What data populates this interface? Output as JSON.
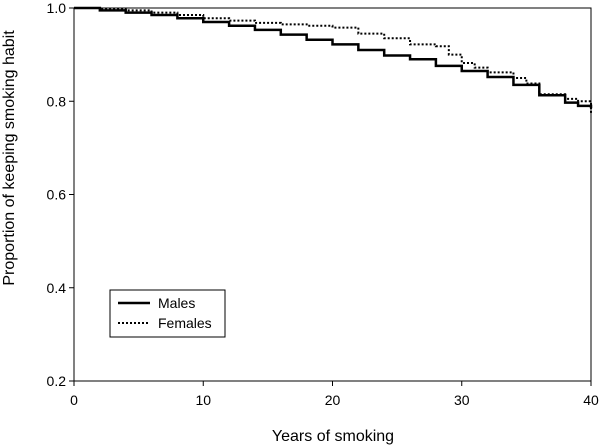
{
  "chart_data": {
    "type": "line",
    "title": "",
    "xlabel": "Years of smoking",
    "ylabel": "Proportion of keeping smoking habit",
    "xlim": [
      0,
      40
    ],
    "ylim": [
      0.2,
      1.0
    ],
    "xticks": [
      0,
      10,
      20,
      30,
      40
    ],
    "yticks": [
      0.2,
      0.4,
      0.6,
      0.8,
      1.0
    ],
    "x_tick_labels": [
      "0",
      "10",
      "20",
      "30",
      "40"
    ],
    "y_tick_labels": [
      "0.2",
      "0.4",
      "0.6",
      "0.8",
      "1.0"
    ],
    "grid": false,
    "legend_position": "lower-left",
    "series": [
      {
        "name": "Males",
        "style": "solid",
        "color": "#000000",
        "x": [
          0,
          2,
          4,
          6,
          8,
          10,
          12,
          14,
          16,
          18,
          20,
          22,
          24,
          26,
          28,
          30,
          32,
          34,
          36,
          38,
          39,
          40
        ],
        "y": [
          1.0,
          0.995,
          0.99,
          0.985,
          0.978,
          0.97,
          0.962,
          0.953,
          0.943,
          0.932,
          0.922,
          0.91,
          0.898,
          0.89,
          0.876,
          0.865,
          0.852,
          0.835,
          0.813,
          0.797,
          0.79,
          0.785
        ]
      },
      {
        "name": "Females",
        "style": "dotted",
        "color": "#000000",
        "x": [
          0,
          2,
          4,
          6,
          8,
          10,
          12,
          14,
          16,
          18,
          20,
          22,
          24,
          26,
          28,
          29,
          30,
          31,
          32,
          34,
          35,
          36,
          38,
          39,
          40
        ],
        "y": [
          1.0,
          0.998,
          0.995,
          0.99,
          0.985,
          0.978,
          0.973,
          0.968,
          0.965,
          0.962,
          0.958,
          0.945,
          0.935,
          0.922,
          0.918,
          0.9,
          0.882,
          0.872,
          0.862,
          0.85,
          0.838,
          0.815,
          0.805,
          0.8,
          0.775
        ]
      }
    ]
  }
}
